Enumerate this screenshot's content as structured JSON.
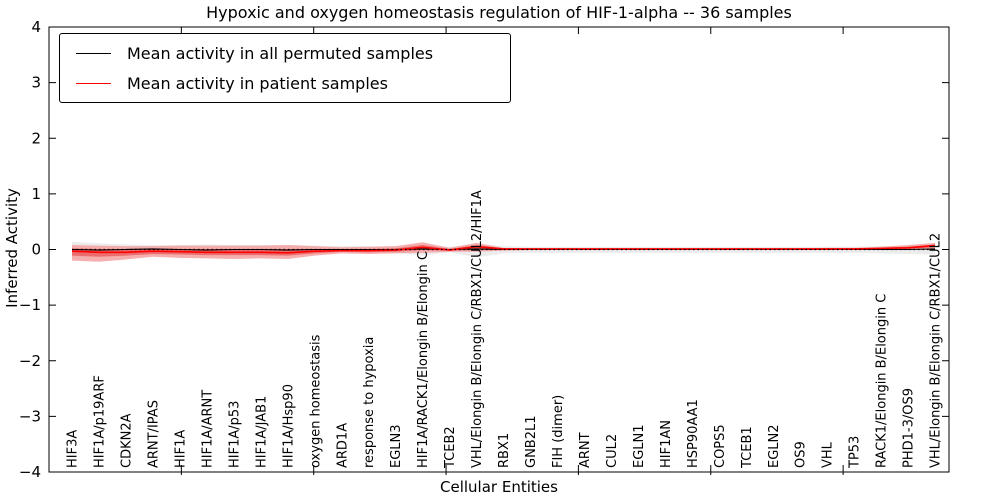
{
  "chart_data": {
    "type": "line",
    "title": "Hypoxic and oxygen homeostasis regulation of HIF-1-alpha -- 36 samples",
    "xlabel": "Cellular Entities",
    "ylabel": "Inferred Activity",
    "ylim": [
      -4,
      4
    ],
    "ytick_labels": [
      "4",
      "3",
      "2",
      "1",
      "0",
      "−1",
      "−2",
      "−3",
      "−4"
    ],
    "ytick_values": [
      4,
      3,
      2,
      1,
      0,
      -1,
      -2,
      -3,
      -4
    ],
    "grid": false,
    "legend_position": "upper left",
    "categories": [
      "HIF3A",
      "HIF1A/p19ARF",
      "CDKN2A",
      "ARNT/IPAS",
      "HIF1A",
      "HIF1A/ARNT",
      "HIF1A/p53",
      "HIF1A/JAB1",
      "HIF1A/Hsp90",
      "oxygen homeostasis",
      "ARD1A",
      "response to hypoxia",
      "EGLN3",
      "HIF1A/RACK1/Elongin B/Elongin C",
      "TCEB2",
      "VHL/Elongin B/Elongin C/RBX1/CUL2/HIF1A",
      "RBX1",
      "GNB2L1",
      "FIH (dimer)",
      "ARNT",
      "CUL2",
      "EGLN1",
      "HIF1AN",
      "HSP90AA1",
      "COPS5",
      "TCEB1",
      "EGLN2",
      "OS9",
      "VHL",
      "TP53",
      "RACK1/Elongin B/Elongin C",
      "PHD1-3/OS9",
      "VHL/Elongin B/Elongin C/RBX1/CUL2"
    ],
    "series": [
      {
        "name": "Mean activity in all permuted samples",
        "color": "#000000",
        "values": [
          0.0,
          -0.01,
          0.0,
          0.01,
          0.0,
          -0.01,
          0.0,
          0.0,
          -0.01,
          0.0,
          0.0,
          0.0,
          0.0,
          0.01,
          0.0,
          0.01,
          0.0,
          0.0,
          0.0,
          0.0,
          0.0,
          0.0,
          0.0,
          0.0,
          0.0,
          0.0,
          0.0,
          0.0,
          0.0,
          0.0,
          0.0,
          0.0,
          0.01
        ]
      },
      {
        "name": "Mean activity in patient samples",
        "color": "#ff0000",
        "values": [
          -0.03,
          -0.05,
          -0.05,
          -0.03,
          -0.04,
          -0.05,
          -0.05,
          -0.05,
          -0.06,
          -0.03,
          -0.02,
          -0.02,
          -0.01,
          0.04,
          -0.01,
          0.05,
          0.01,
          0.01,
          0.01,
          0.01,
          0.01,
          0.01,
          0.01,
          0.01,
          0.01,
          0.01,
          0.01,
          0.01,
          0.01,
          0.01,
          0.02,
          0.03,
          0.07
        ]
      }
    ],
    "bands": [
      {
        "name": "permuted-samples-range",
        "color": "#ececec",
        "upper": [
          0.14,
          0.11,
          0.09,
          0.08,
          0.08,
          0.09,
          0.08,
          0.08,
          0.08,
          0.07,
          0.06,
          0.06,
          0.06,
          0.09,
          0.05,
          0.1,
          0.06,
          0.05,
          0.05,
          0.05,
          0.05,
          0.05,
          0.05,
          0.05,
          0.05,
          0.05,
          0.05,
          0.05,
          0.05,
          0.05,
          0.06,
          0.07,
          0.09
        ],
        "lower": [
          -0.14,
          -0.11,
          -0.09,
          -0.08,
          -0.08,
          -0.09,
          -0.08,
          -0.08,
          -0.08,
          -0.07,
          -0.06,
          -0.06,
          -0.06,
          -0.11,
          -0.05,
          -0.14,
          -0.07,
          -0.06,
          -0.06,
          -0.06,
          -0.06,
          -0.06,
          -0.06,
          -0.06,
          -0.06,
          -0.06,
          -0.06,
          -0.06,
          -0.06,
          -0.06,
          -0.07,
          -0.08,
          -0.09
        ]
      },
      {
        "name": "patient-samples-range-outer",
        "color": "#f4a6a6",
        "upper": [
          0.08,
          0.07,
          0.06,
          0.06,
          0.07,
          0.07,
          0.07,
          0.07,
          0.08,
          0.06,
          0.04,
          0.05,
          0.06,
          0.13,
          0.03,
          0.12,
          0.03,
          0.02,
          0.02,
          0.02,
          0.02,
          0.02,
          0.02,
          0.02,
          0.02,
          0.02,
          0.02,
          0.02,
          0.03,
          0.03,
          0.05,
          0.08,
          0.12
        ],
        "lower": [
          -0.2,
          -0.22,
          -0.18,
          -0.13,
          -0.15,
          -0.16,
          -0.17,
          -0.16,
          -0.17,
          -0.11,
          -0.07,
          -0.08,
          -0.07,
          -0.06,
          -0.04,
          -0.04,
          -0.02,
          -0.01,
          -0.01,
          -0.01,
          -0.01,
          -0.01,
          -0.01,
          -0.01,
          -0.01,
          -0.01,
          -0.01,
          -0.01,
          -0.01,
          -0.01,
          -0.01,
          0.0,
          0.01
        ],
        "opacity": 0.9
      },
      {
        "name": "patient-samples-range-inner",
        "color": "#e96262",
        "upper": [
          0.02,
          0.01,
          0.0,
          0.01,
          0.01,
          0.01,
          0.01,
          0.01,
          0.01,
          0.01,
          0.01,
          0.01,
          0.02,
          0.08,
          0.01,
          0.08,
          0.02,
          0.01,
          0.01,
          0.01,
          0.01,
          0.01,
          0.01,
          0.01,
          0.01,
          0.01,
          0.01,
          0.01,
          0.02,
          0.02,
          0.03,
          0.05,
          0.09
        ],
        "lower": [
          -0.11,
          -0.13,
          -0.11,
          -0.08,
          -0.09,
          -0.1,
          -0.1,
          -0.1,
          -0.11,
          -0.07,
          -0.04,
          -0.05,
          -0.04,
          -0.01,
          -0.02,
          -0.01,
          0.0,
          0.0,
          0.0,
          0.0,
          0.0,
          0.0,
          0.0,
          0.0,
          0.0,
          0.0,
          0.0,
          0.0,
          0.0,
          0.0,
          0.01,
          0.01,
          0.04
        ],
        "opacity": 0.85
      }
    ],
    "zero_line": {
      "value": 0,
      "style": "dotted",
      "color": "#000000"
    }
  },
  "colors": {
    "frame": "#000000",
    "background": "#ffffff",
    "permuted_line": "#000000",
    "patient_line": "#ff0000"
  }
}
